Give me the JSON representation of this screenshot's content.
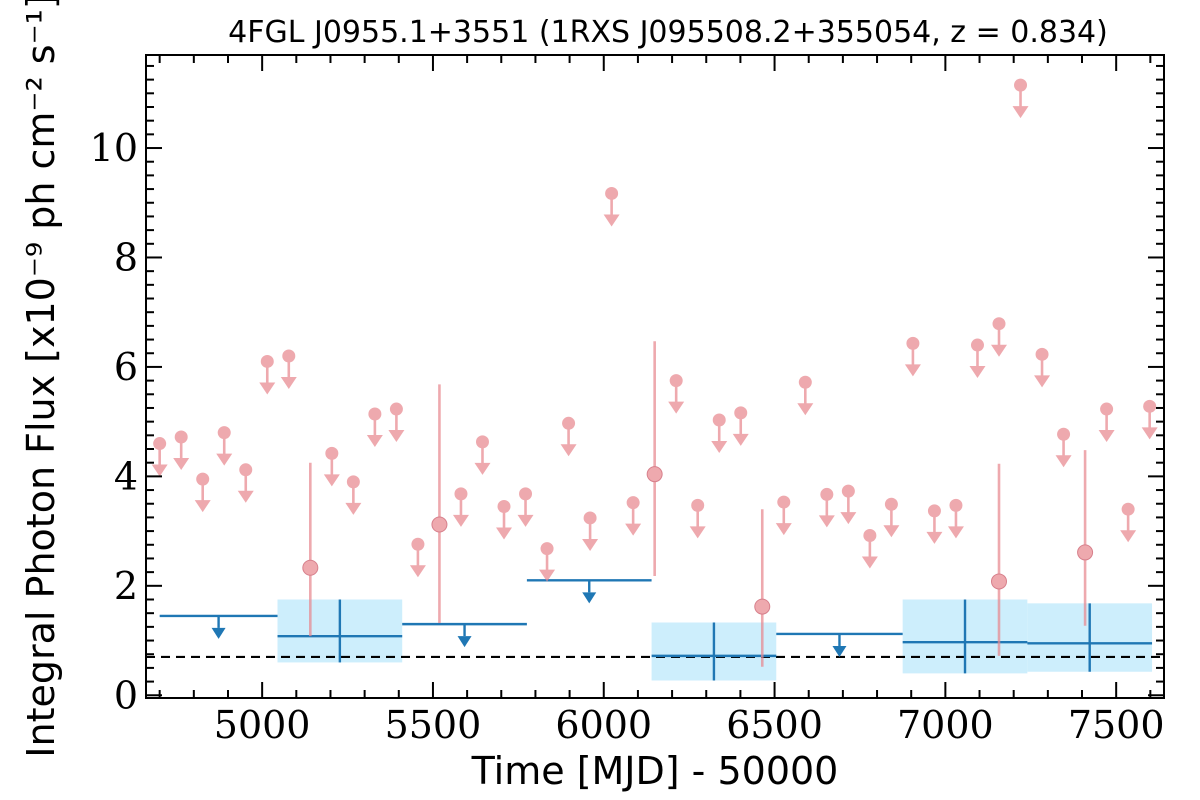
{
  "chart_data": {
    "type": "scatter",
    "title": "4FGL J0955.1+3551 (1RXS J095508.2+355054, z = 0.834)",
    "xlabel": "Time [MJD] - 50000",
    "ylabel": "Integral Photon Flux [x10⁻⁹ ph cm⁻² s⁻¹]",
    "xlim": [
      4660,
      7640
    ],
    "ylim": [
      -0.05,
      11.7
    ],
    "x_ticks": [
      5000,
      5500,
      6000,
      6500,
      7000,
      7500
    ],
    "y_ticks": [
      0,
      2,
      4,
      6,
      8,
      10
    ],
    "grid": false,
    "colors": {
      "short_bins": "#e8888f",
      "long_bins": "#1f77b4",
      "long_bins_fill": "#cdeefc",
      "reference_line": "#000000"
    },
    "reference_level": 0.7,
    "long_bin_upper_limits": [
      {
        "x0": 4700,
        "x1": 5045,
        "y": 1.45
      },
      {
        "x0": 5410,
        "x1": 5775,
        "y": 1.3
      },
      {
        "x0": 5775,
        "x1": 6140,
        "y": 2.1
      },
      {
        "x0": 6505,
        "x1": 6875,
        "y": 1.12
      }
    ],
    "long_bin_detections": [
      {
        "x0": 5045,
        "x1": 5410,
        "y": 1.08,
        "lo": 0.6,
        "hi": 1.75
      },
      {
        "x0": 6140,
        "x1": 6505,
        "y": 0.72,
        "lo": 0.27,
        "hi": 1.33
      },
      {
        "x0": 6875,
        "x1": 7240,
        "y": 0.97,
        "lo": 0.4,
        "hi": 1.75
      },
      {
        "x0": 7240,
        "x1": 7605,
        "y": 0.95,
        "lo": 0.43,
        "hi": 1.68
      }
    ],
    "short_bin_upper_limits": [
      {
        "x": 4700,
        "y": 4.6
      },
      {
        "x": 4763,
        "y": 4.72
      },
      {
        "x": 4826,
        "y": 3.95
      },
      {
        "x": 4889,
        "y": 4.8
      },
      {
        "x": 4952,
        "y": 4.12
      },
      {
        "x": 5015,
        "y": 6.1
      },
      {
        "x": 5078,
        "y": 6.2
      },
      {
        "x": 5204,
        "y": 4.42
      },
      {
        "x": 5267,
        "y": 3.9
      },
      {
        "x": 5330,
        "y": 5.14
      },
      {
        "x": 5393,
        "y": 5.23
      },
      {
        "x": 5456,
        "y": 2.76
      },
      {
        "x": 5582,
        "y": 3.68
      },
      {
        "x": 5645,
        "y": 4.63
      },
      {
        "x": 5708,
        "y": 3.45
      },
      {
        "x": 5771,
        "y": 3.68
      },
      {
        "x": 5834,
        "y": 2.68
      },
      {
        "x": 5897,
        "y": 4.97
      },
      {
        "x": 5960,
        "y": 3.24
      },
      {
        "x": 6023,
        "y": 9.17
      },
      {
        "x": 6086,
        "y": 3.52
      },
      {
        "x": 6212,
        "y": 5.75
      },
      {
        "x": 6275,
        "y": 3.47
      },
      {
        "x": 6338,
        "y": 5.03
      },
      {
        "x": 6401,
        "y": 5.16
      },
      {
        "x": 6527,
        "y": 3.53
      },
      {
        "x": 6590,
        "y": 5.72
      },
      {
        "x": 6653,
        "y": 3.67
      },
      {
        "x": 6716,
        "y": 3.73
      },
      {
        "x": 6779,
        "y": 2.92
      },
      {
        "x": 6842,
        "y": 3.49
      },
      {
        "x": 6905,
        "y": 6.43
      },
      {
        "x": 6968,
        "y": 3.37
      },
      {
        "x": 7031,
        "y": 3.47
      },
      {
        "x": 7094,
        "y": 6.4
      },
      {
        "x": 7157,
        "y": 6.79
      },
      {
        "x": 7220,
        "y": 11.15
      },
      {
        "x": 7283,
        "y": 6.23
      },
      {
        "x": 7346,
        "y": 4.77
      },
      {
        "x": 7472,
        "y": 5.23
      },
      {
        "x": 7535,
        "y": 3.4
      },
      {
        "x": 7598,
        "y": 5.28
      }
    ],
    "short_bin_detections": [
      {
        "x": 5141,
        "y": 2.33,
        "lo": 1.08,
        "hi": 4.25
      },
      {
        "x": 5519,
        "y": 3.12,
        "lo": 1.32,
        "hi": 5.68
      },
      {
        "x": 6149,
        "y": 4.04,
        "lo": 2.18,
        "hi": 6.47
      },
      {
        "x": 6464,
        "y": 1.62,
        "lo": 0.52,
        "hi": 3.4
      },
      {
        "x": 7157,
        "y": 2.08,
        "lo": 0.72,
        "hi": 4.23
      },
      {
        "x": 7409,
        "y": 2.61,
        "lo": 1.27,
        "hi": 4.48
      }
    ]
  }
}
